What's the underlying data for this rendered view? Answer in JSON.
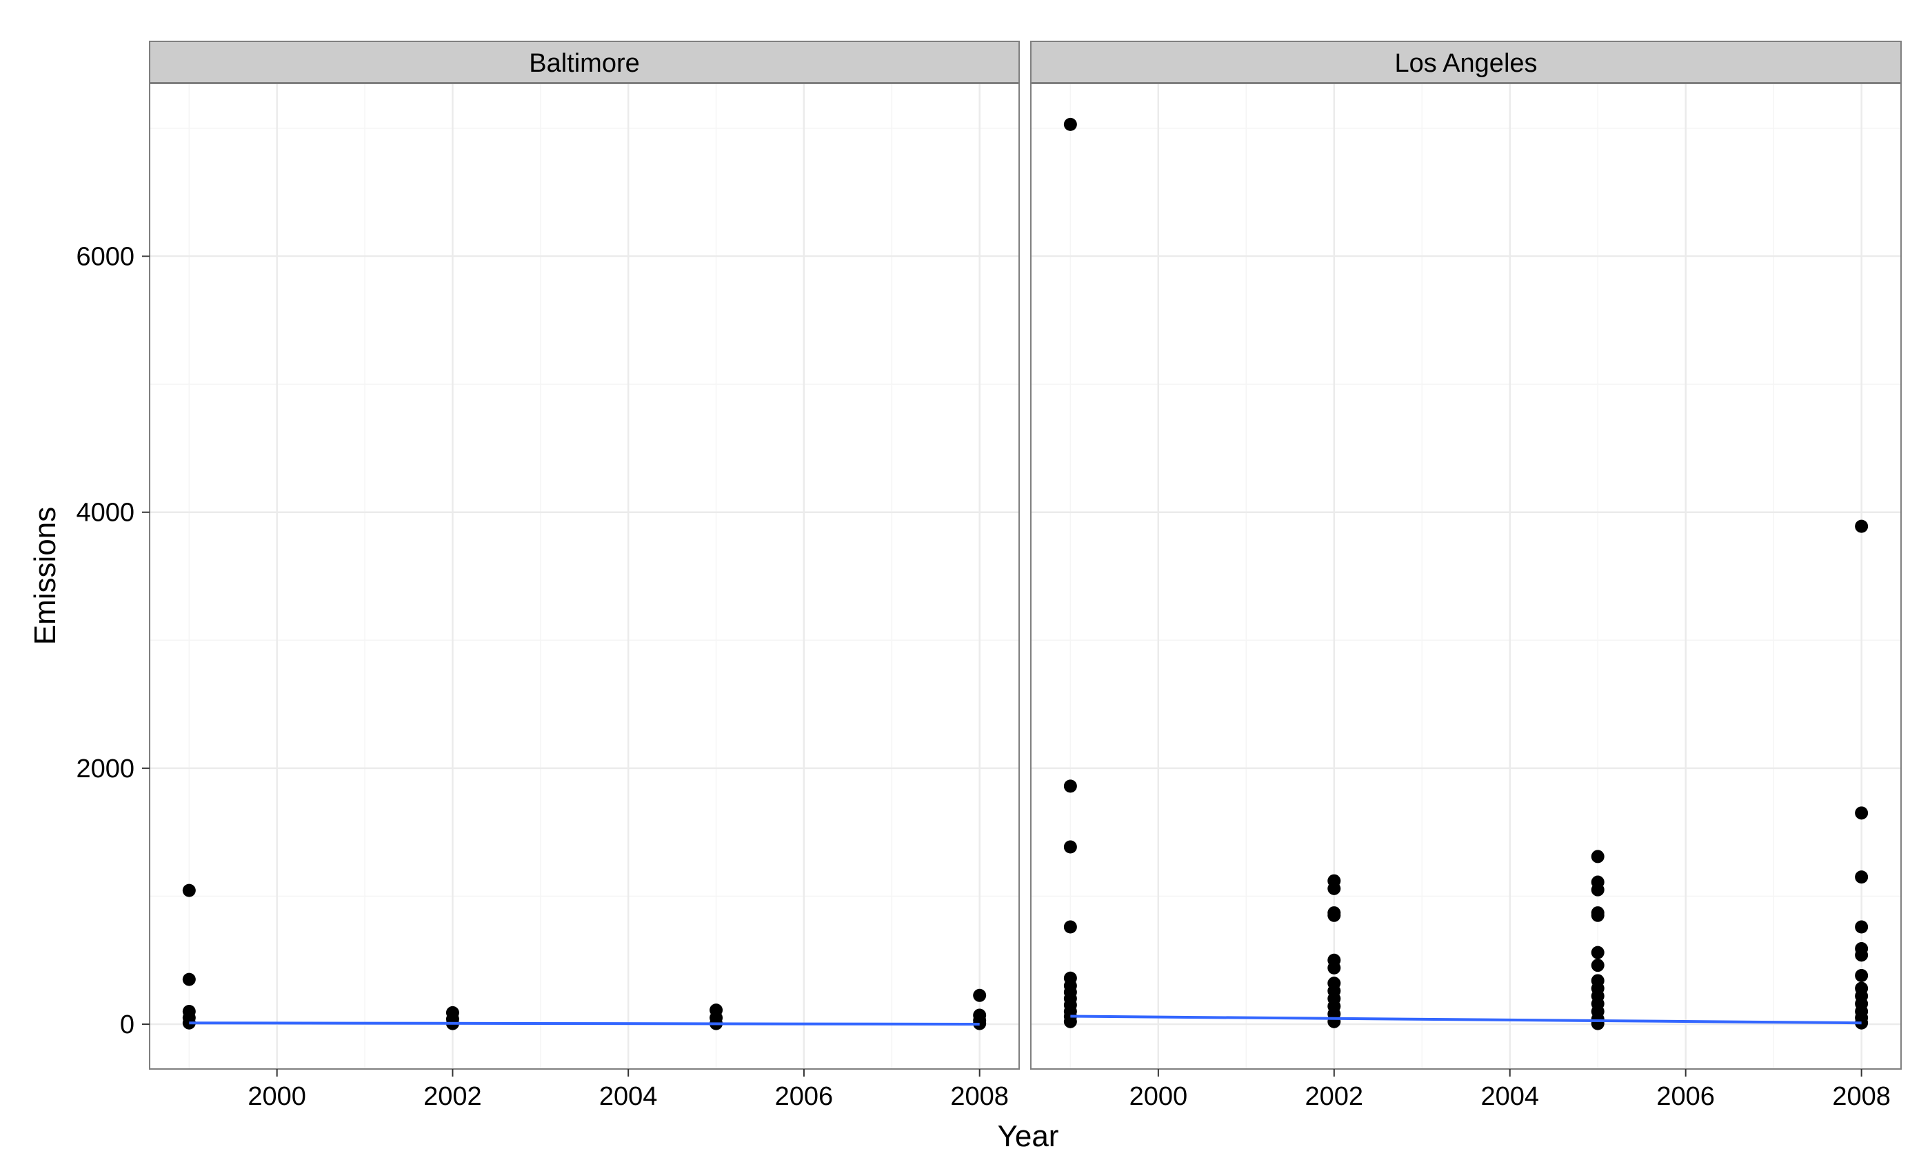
{
  "chart_data": {
    "type": "scatter",
    "xlabel": "Year",
    "ylabel": "Emissions",
    "xlim": [
      1998.55,
      2008.45
    ],
    "ylim": [
      -350,
      7350
    ],
    "x_ticks": [
      2000,
      2002,
      2004,
      2006,
      2008
    ],
    "y_ticks": [
      0,
      2000,
      4000,
      6000
    ],
    "grid": true,
    "colors": {
      "strip_fill": "#cccccc",
      "panel_border": "#7f7f7f",
      "grid_major": "#ebebeb",
      "grid_minor": "#f5f5f5",
      "points": "#000000",
      "trend_line": "#3366ff"
    },
    "panels": [
      {
        "name": "Baltimore",
        "points": [
          {
            "x": 1999,
            "y": 1045
          },
          {
            "x": 1999,
            "y": 350
          },
          {
            "x": 1999,
            "y": 100
          },
          {
            "x": 1999,
            "y": 50
          },
          {
            "x": 1999,
            "y": 10
          },
          {
            "x": 2002,
            "y": 90
          },
          {
            "x": 2002,
            "y": 40
          },
          {
            "x": 2002,
            "y": 5
          },
          {
            "x": 2005,
            "y": 110
          },
          {
            "x": 2005,
            "y": 50
          },
          {
            "x": 2005,
            "y": 5
          },
          {
            "x": 2008,
            "y": 225
          },
          {
            "x": 2008,
            "y": 70
          },
          {
            "x": 2008,
            "y": 30
          },
          {
            "x": 2008,
            "y": 5
          }
        ],
        "trend": [
          {
            "x": 1999,
            "y": 10
          },
          {
            "x": 2008,
            "y": 0
          }
        ]
      },
      {
        "name": "Los Angeles",
        "points": [
          {
            "x": 1999,
            "y": 7030
          },
          {
            "x": 1999,
            "y": 1860
          },
          {
            "x": 1999,
            "y": 1385
          },
          {
            "x": 1999,
            "y": 760
          },
          {
            "x": 1999,
            "y": 360
          },
          {
            "x": 1999,
            "y": 300
          },
          {
            "x": 1999,
            "y": 250
          },
          {
            "x": 1999,
            "y": 200
          },
          {
            "x": 1999,
            "y": 150
          },
          {
            "x": 1999,
            "y": 100
          },
          {
            "x": 1999,
            "y": 60
          },
          {
            "x": 1999,
            "y": 20
          },
          {
            "x": 2002,
            "y": 1120
          },
          {
            "x": 2002,
            "y": 1060
          },
          {
            "x": 2002,
            "y": 870
          },
          {
            "x": 2002,
            "y": 850
          },
          {
            "x": 2002,
            "y": 500
          },
          {
            "x": 2002,
            "y": 440
          },
          {
            "x": 2002,
            "y": 320
          },
          {
            "x": 2002,
            "y": 260
          },
          {
            "x": 2002,
            "y": 200
          },
          {
            "x": 2002,
            "y": 140
          },
          {
            "x": 2002,
            "y": 80
          },
          {
            "x": 2002,
            "y": 20
          },
          {
            "x": 2005,
            "y": 1310
          },
          {
            "x": 2005,
            "y": 1110
          },
          {
            "x": 2005,
            "y": 1050
          },
          {
            "x": 2005,
            "y": 870
          },
          {
            "x": 2005,
            "y": 850
          },
          {
            "x": 2005,
            "y": 560
          },
          {
            "x": 2005,
            "y": 460
          },
          {
            "x": 2005,
            "y": 340
          },
          {
            "x": 2005,
            "y": 280
          },
          {
            "x": 2005,
            "y": 220
          },
          {
            "x": 2005,
            "y": 160
          },
          {
            "x": 2005,
            "y": 100
          },
          {
            "x": 2005,
            "y": 40
          },
          {
            "x": 2005,
            "y": 5
          },
          {
            "x": 2008,
            "y": 3890
          },
          {
            "x": 2008,
            "y": 1650
          },
          {
            "x": 2008,
            "y": 1150
          },
          {
            "x": 2008,
            "y": 760
          },
          {
            "x": 2008,
            "y": 590
          },
          {
            "x": 2008,
            "y": 540
          },
          {
            "x": 2008,
            "y": 380
          },
          {
            "x": 2008,
            "y": 280
          },
          {
            "x": 2008,
            "y": 220
          },
          {
            "x": 2008,
            "y": 160
          },
          {
            "x": 2008,
            "y": 100
          },
          {
            "x": 2008,
            "y": 50
          },
          {
            "x": 2008,
            "y": 10
          }
        ],
        "trend": [
          {
            "x": 1999,
            "y": 62
          },
          {
            "x": 2008,
            "y": 10
          }
        ]
      }
    ]
  }
}
